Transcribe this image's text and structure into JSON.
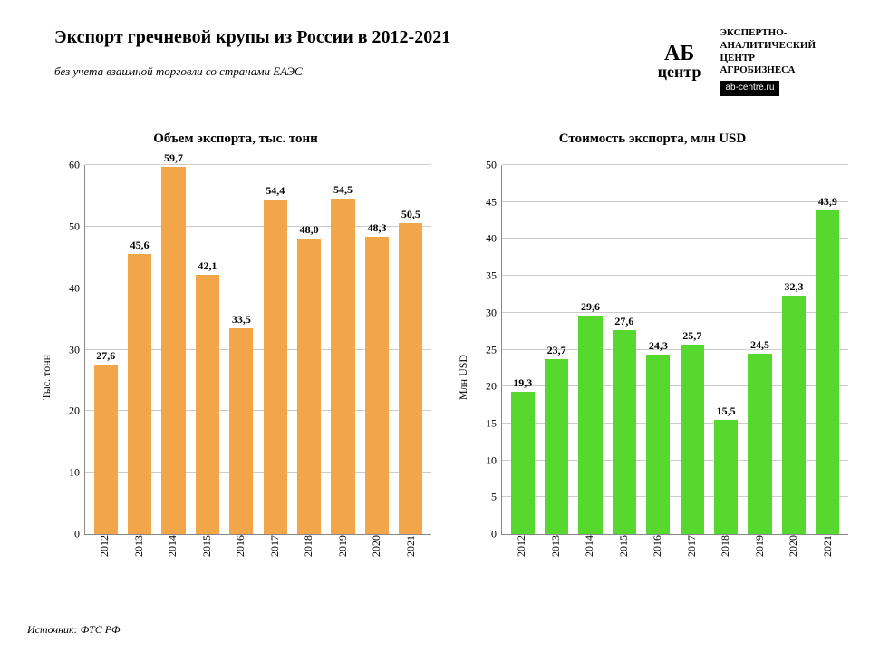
{
  "header": {
    "title": "Экспорт гречневой крупы из России в 2012-2021",
    "subtitle": "без учета взаимной торговли со странами ЕАЭС",
    "logo_ab": "АБ",
    "logo_center": "центр",
    "logo_line1": "ЭКСПЕРТНО-",
    "logo_line2": "АНАЛИТИЧЕСКИЙ",
    "logo_line3": "ЦЕНТР",
    "logo_line4": "АГРОБИЗНЕСА",
    "site": "ab-centre.ru"
  },
  "source": "Источник: ФТС РФ",
  "volume_chart": {
    "type": "bar",
    "title": "Объем экспорта, тыс. тонн",
    "ylabel": "Тыс. тонн",
    "categories": [
      "2012",
      "2013",
      "2014",
      "2015",
      "2016",
      "2017",
      "2018",
      "2019",
      "2020",
      "2021"
    ],
    "values": [
      27.6,
      45.6,
      59.7,
      42.1,
      33.5,
      54.4,
      48.0,
      54.5,
      48.3,
      50.5
    ],
    "value_labels": [
      "27,6",
      "45,6",
      "59,7",
      "42,1",
      "33,5",
      "54,4",
      "48,0",
      "54,5",
      "48,3",
      "50,5"
    ],
    "bar_color": "#f2a549",
    "ylim": [
      0,
      60
    ],
    "ytick_step": 10,
    "grid_color": "#cccccc",
    "background_color": "#ffffff",
    "label_fontsize": 12,
    "title_fontsize": 15,
    "bar_width": 0.7
  },
  "value_chart": {
    "type": "bar",
    "title": "Стоимость экспорта, млн USD",
    "ylabel": "Mлн USD",
    "categories": [
      "2012",
      "2013",
      "2014",
      "2015",
      "2016",
      "2017",
      "2018",
      "2019",
      "2020",
      "2021"
    ],
    "values": [
      19.3,
      23.7,
      29.6,
      27.6,
      24.3,
      25.7,
      15.5,
      24.5,
      32.3,
      43.9
    ],
    "value_labels": [
      "19,3",
      "23,7",
      "29,6",
      "27,6",
      "24,3",
      "25,7",
      "15,5",
      "24,5",
      "32,3",
      "43,9"
    ],
    "bar_color": "#56d82f",
    "ylim": [
      0,
      50
    ],
    "ytick_step": 5,
    "grid_color": "#cccccc",
    "background_color": "#ffffff",
    "label_fontsize": 12,
    "title_fontsize": 15,
    "bar_width": 0.7
  }
}
